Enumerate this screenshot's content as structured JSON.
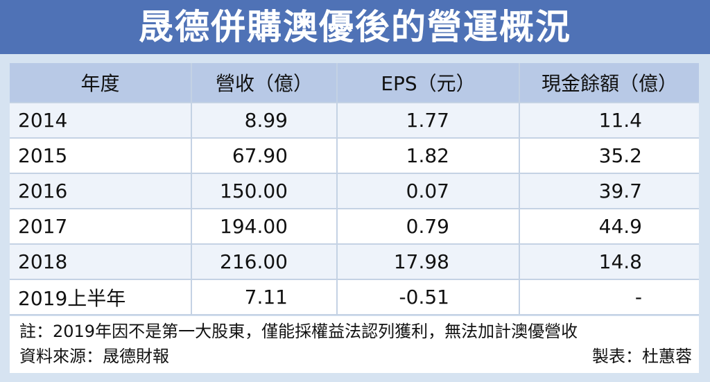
{
  "title": "晟德併購澳優後的營運概況",
  "chart_data": {
    "type": "table",
    "columns": [
      "年度",
      "營收（億）",
      "EPS（元）",
      "現金餘額（億）"
    ],
    "rows": [
      [
        "2014",
        "8.99",
        "1.77",
        "11.4"
      ],
      [
        "2015",
        "67.90",
        "1.82",
        "35.2"
      ],
      [
        "2016",
        "150.00",
        "0.07",
        "39.7"
      ],
      [
        "2017",
        "194.00",
        "0.79",
        "44.9"
      ],
      [
        "2018",
        "216.00",
        "17.98",
        "14.8"
      ],
      [
        "2019上半年",
        "7.11",
        "-0.51",
        "-"
      ]
    ]
  },
  "notes": {
    "footnote": "註：2019年因不是第一大股東，僅能採權益法認列獲利，無法加計澳優營收",
    "source": "資料來源：晟德財報",
    "maker": "製表：杜蕙蓉"
  },
  "colors": {
    "title_bg": "#4f72b6",
    "header_bg": "#b8c9e6",
    "page_bg": "#d6e3f1"
  }
}
